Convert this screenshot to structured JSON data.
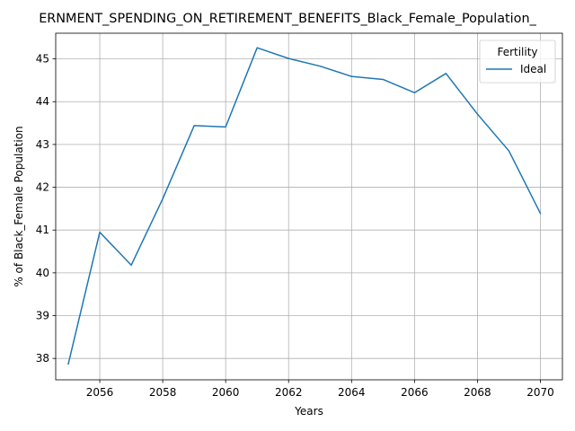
{
  "chart_data": {
    "type": "line",
    "title": "ERNMENT_SPENDING_ON_RETIREMENT_BENEFITS_Black_Female_Population_",
    "xlabel": "Years",
    "ylabel": "% of Black_Female Population",
    "xlim": [
      2054.6,
      2070.7
    ],
    "ylim": [
      37.5,
      45.6
    ],
    "xticks": [
      2056,
      2058,
      2060,
      2062,
      2064,
      2066,
      2068,
      2070
    ],
    "yticks": [
      38,
      39,
      40,
      41,
      42,
      43,
      44,
      45
    ],
    "grid": true,
    "legend": {
      "title": "Fertility",
      "placement": "top-right"
    },
    "series": [
      {
        "name": "Ideal",
        "color": "#1f77b4",
        "x": [
          2055,
          2056,
          2057,
          2058,
          2059,
          2060,
          2061,
          2062,
          2063,
          2064,
          2065,
          2066,
          2067,
          2068,
          2069,
          2070
        ],
        "y": [
          37.87,
          40.95,
          40.18,
          41.73,
          43.44,
          43.41,
          45.26,
          45.01,
          44.83,
          44.59,
          44.52,
          44.21,
          44.66,
          43.71,
          42.85,
          41.39
        ]
      }
    ]
  }
}
